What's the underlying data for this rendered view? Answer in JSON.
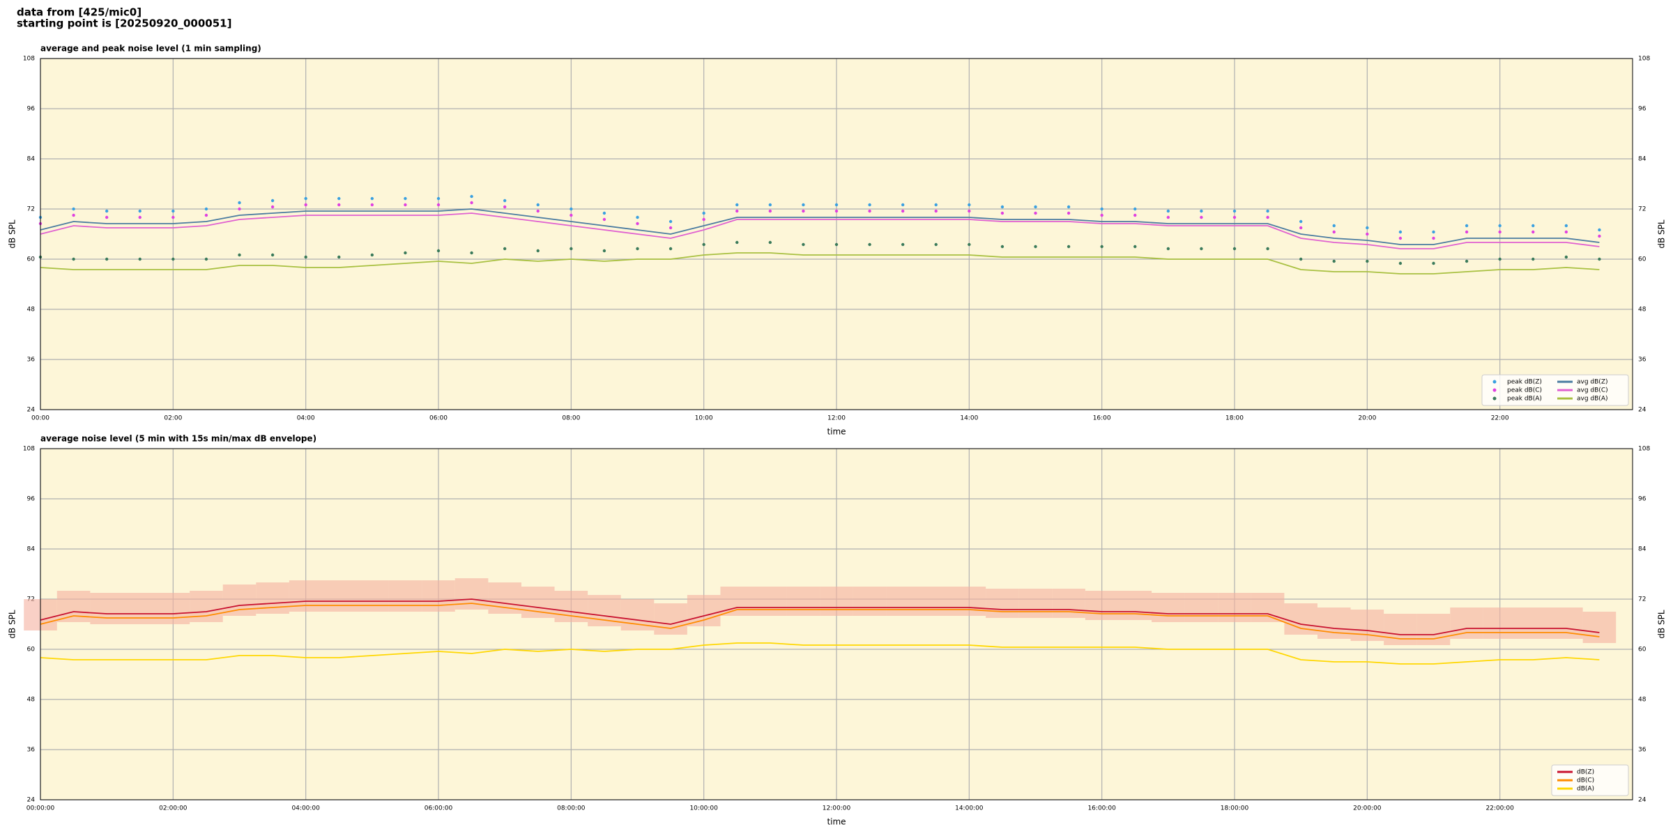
{
  "header_lines": [
    "data from [425/mic0]",
    "starting point is [20250920_000051]"
  ],
  "chart_data": [
    {
      "type": "line",
      "title": "average and peak noise level (1 min sampling)",
      "xlabel": "time",
      "ylabel": "dB SPL",
      "xlim": [
        0,
        24
      ],
      "ylim": [
        24,
        108
      ],
      "yticks": [
        24,
        36,
        48,
        60,
        72,
        84,
        96,
        108
      ],
      "xticks": [
        {
          "value": 0,
          "label": "00:00"
        },
        {
          "value": 2,
          "label": "02:00"
        },
        {
          "value": 4,
          "label": "04:00"
        },
        {
          "value": 6,
          "label": "06:00"
        },
        {
          "value": 8,
          "label": "08:00"
        },
        {
          "value": 10,
          "label": "10:00"
        },
        {
          "value": 12,
          "label": "12:00"
        },
        {
          "value": 14,
          "label": "14:00"
        },
        {
          "value": 16,
          "label": "16:00"
        },
        {
          "value": 18,
          "label": "18:00"
        },
        {
          "value": 20,
          "label": "20:00"
        },
        {
          "value": 22,
          "label": "22:00"
        }
      ],
      "grid": true,
      "legend": "lower right",
      "background": "#fdf6d8",
      "x": [
        0,
        0.5,
        1,
        1.5,
        2,
        2.5,
        3,
        3.5,
        4,
        4.5,
        5,
        5.5,
        6,
        6.5,
        7,
        7.5,
        8,
        8.5,
        9,
        9.5,
        10,
        10.5,
        11,
        11.5,
        12,
        12.5,
        13,
        13.5,
        14,
        14.5,
        15,
        15.5,
        16,
        16.5,
        17,
        17.5,
        18,
        18.5,
        19,
        19.5,
        20,
        20.5,
        21,
        21.5,
        22,
        22.5,
        23,
        23.5
      ],
      "series": [
        {
          "name": "peak dB(Z)",
          "color": "#3aa0e0",
          "marker": true,
          "values": [
            70,
            72,
            71.5,
            71.5,
            71.5,
            72,
            73.5,
            74,
            74.5,
            74.5,
            74.5,
            74.5,
            74.5,
            75,
            74,
            73,
            72,
            71,
            70,
            69,
            71,
            73,
            73,
            73,
            73,
            73,
            73,
            73,
            73,
            72.5,
            72.5,
            72.5,
            72,
            72,
            71.5,
            71.5,
            71.5,
            71.5,
            69,
            68,
            67.5,
            66.5,
            66.5,
            68,
            68,
            68,
            68,
            67
          ]
        },
        {
          "name": "peak dB(C)",
          "color": "#e040e0",
          "marker": true,
          "values": [
            68.5,
            70.5,
            70,
            70,
            70,
            70.5,
            72,
            72.5,
            73,
            73,
            73,
            73,
            73,
            73.5,
            72.5,
            71.5,
            70.5,
            69.5,
            68.5,
            67.5,
            69.5,
            71.5,
            71.5,
            71.5,
            71.5,
            71.5,
            71.5,
            71.5,
            71.5,
            71,
            71,
            71,
            70.5,
            70.5,
            70,
            70,
            70,
            70,
            67.5,
            66.5,
            66,
            65,
            65,
            66.5,
            66.5,
            66.5,
            66.5,
            65.5
          ]
        },
        {
          "name": "peak dB(A)",
          "color": "#3a7a5a",
          "marker": true,
          "values": [
            60.5,
            60,
            60,
            60,
            60,
            60,
            61,
            61,
            60.5,
            60.5,
            61,
            61.5,
            62,
            61.5,
            62.5,
            62,
            62.5,
            62,
            62.5,
            62.5,
            63.5,
            64,
            64,
            63.5,
            63.5,
            63.5,
            63.5,
            63.5,
            63.5,
            63,
            63,
            63,
            63,
            63,
            62.5,
            62.5,
            62.5,
            62.5,
            60,
            59.5,
            59.5,
            59,
            59,
            59.5,
            60,
            60,
            60.5,
            60
          ]
        },
        {
          "name": "avg dB(Z)",
          "color": "#4a7ba0",
          "marker": false,
          "values": [
            67,
            69,
            68.5,
            68.5,
            68.5,
            69,
            70.5,
            71,
            71.5,
            71.5,
            71.5,
            71.5,
            71.5,
            72,
            71,
            70,
            69,
            68,
            67,
            66,
            68,
            70,
            70,
            70,
            70,
            70,
            70,
            70,
            70,
            69.5,
            69.5,
            69.5,
            69,
            69,
            68.5,
            68.5,
            68.5,
            68.5,
            66,
            65,
            64.5,
            63.5,
            63.5,
            65,
            65,
            65,
            65,
            64
          ]
        },
        {
          "name": "avg dB(C)",
          "color": "#e060d0",
          "marker": false,
          "values": [
            66,
            68,
            67.5,
            67.5,
            67.5,
            68,
            69.5,
            70,
            70.5,
            70.5,
            70.5,
            70.5,
            70.5,
            71,
            70,
            69,
            68,
            67,
            66,
            65,
            67,
            69.5,
            69.5,
            69.5,
            69.5,
            69.5,
            69.5,
            69.5,
            69.5,
            69,
            69,
            69,
            68.5,
            68.5,
            68,
            68,
            68,
            68,
            65,
            64,
            63.5,
            62.5,
            62.5,
            64,
            64,
            64,
            64,
            63
          ]
        },
        {
          "name": "avg dB(A)",
          "color": "#a8c040",
          "marker": false,
          "values": [
            58,
            57.5,
            57.5,
            57.5,
            57.5,
            57.5,
            58.5,
            58.5,
            58,
            58,
            58.5,
            59,
            59.5,
            59,
            60,
            59.5,
            60,
            59.5,
            60,
            60,
            61,
            61.5,
            61.5,
            61,
            61,
            61,
            61,
            61,
            61,
            60.5,
            60.5,
            60.5,
            60.5,
            60.5,
            60,
            60,
            60,
            60,
            57.5,
            57,
            57,
            56.5,
            56.5,
            57,
            57.5,
            57.5,
            58,
            57.5
          ]
        }
      ]
    },
    {
      "type": "line",
      "title": "average noise level (5 min with 15s min/max dB envelope)",
      "xlabel": "time",
      "ylabel": "dB SPL",
      "xlim": [
        0,
        24
      ],
      "ylim": [
        24,
        108
      ],
      "yticks": [
        24,
        36,
        48,
        60,
        72,
        84,
        96,
        108
      ],
      "xticks": [
        {
          "value": 0,
          "label": "00:00:00"
        },
        {
          "value": 2,
          "label": "02:00:00"
        },
        {
          "value": 4,
          "label": "04:00:00"
        },
        {
          "value": 6,
          "label": "06:00:00"
        },
        {
          "value": 8,
          "label": "08:00:00"
        },
        {
          "value": 10,
          "label": "10:00:00"
        },
        {
          "value": 12,
          "label": "12:00:00"
        },
        {
          "value": 14,
          "label": "14:00:00"
        },
        {
          "value": 16,
          "label": "16:00:00"
        },
        {
          "value": 18,
          "label": "18:00:00"
        },
        {
          "value": 20,
          "label": "20:00:00"
        },
        {
          "value": 22,
          "label": "22:00:00"
        }
      ],
      "grid": true,
      "legend": "lower right",
      "background": "#fdf6d8",
      "x": [
        0,
        0.5,
        1,
        1.5,
        2,
        2.5,
        3,
        3.5,
        4,
        4.5,
        5,
        5.5,
        6,
        6.5,
        7,
        7.5,
        8,
        8.5,
        9,
        9.5,
        10,
        10.5,
        11,
        11.5,
        12,
        12.5,
        13,
        13.5,
        14,
        14.5,
        15,
        15.5,
        16,
        16.5,
        17,
        17.5,
        18,
        18.5,
        19,
        19.5,
        20,
        20.5,
        21,
        21.5,
        22,
        22.5,
        23,
        23.5
      ],
      "envelope": {
        "color": "#f5b0a0",
        "max": [
          72,
          74,
          73.5,
          73.5,
          73.5,
          74,
          75.5,
          76,
          76.5,
          76.5,
          76.5,
          76.5,
          76.5,
          77,
          76,
          75,
          74,
          73,
          72,
          71,
          73,
          75,
          75,
          75,
          75,
          75,
          75,
          75,
          75,
          74.5,
          74.5,
          74.5,
          74,
          74,
          73.5,
          73.5,
          73.5,
          73.5,
          71,
          70,
          69.5,
          68.5,
          68.5,
          70,
          70,
          70,
          70,
          69
        ],
        "min": [
          64.5,
          66.5,
          66,
          66,
          66,
          66.5,
          68,
          68.5,
          69,
          69,
          69,
          69,
          69,
          69.5,
          68.5,
          67.5,
          66.5,
          65.5,
          64.5,
          63.5,
          65.5,
          68,
          68,
          68,
          68,
          68,
          68,
          68,
          68,
          67.5,
          67.5,
          67.5,
          67,
          67,
          66.5,
          66.5,
          66.5,
          66.5,
          63.5,
          62.5,
          62,
          61,
          61,
          62.5,
          62.5,
          62.5,
          62.5,
          61.5
        ]
      },
      "series": [
        {
          "name": "dB(Z)",
          "color": "#c8102e",
          "marker": false,
          "values": [
            67,
            69,
            68.5,
            68.5,
            68.5,
            69,
            70.5,
            71,
            71.5,
            71.5,
            71.5,
            71.5,
            71.5,
            72,
            71,
            70,
            69,
            68,
            67,
            66,
            68,
            70,
            70,
            70,
            70,
            70,
            70,
            70,
            70,
            69.5,
            69.5,
            69.5,
            69,
            69,
            68.5,
            68.5,
            68.5,
            68.5,
            66,
            65,
            64.5,
            63.5,
            63.5,
            65,
            65,
            65,
            65,
            64
          ]
        },
        {
          "name": "dB(C)",
          "color": "#ff8c00",
          "marker": false,
          "values": [
            66,
            68,
            67.5,
            67.5,
            67.5,
            68,
            69.5,
            70,
            70.5,
            70.5,
            70.5,
            70.5,
            70.5,
            71,
            70,
            69,
            68,
            67,
            66,
            65,
            67,
            69.5,
            69.5,
            69.5,
            69.5,
            69.5,
            69.5,
            69.5,
            69.5,
            69,
            69,
            69,
            68.5,
            68.5,
            68,
            68,
            68,
            68,
            65,
            64,
            63.5,
            62.5,
            62.5,
            64,
            64,
            64,
            64,
            63
          ]
        },
        {
          "name": "dB(A)",
          "color": "#ffd700",
          "marker": false,
          "values": [
            58,
            57.5,
            57.5,
            57.5,
            57.5,
            57.5,
            58.5,
            58.5,
            58,
            58,
            58.5,
            59,
            59.5,
            59,
            60,
            59.5,
            60,
            59.5,
            60,
            60,
            61,
            61.5,
            61.5,
            61,
            61,
            61,
            61,
            61,
            61,
            60.5,
            60.5,
            60.5,
            60.5,
            60.5,
            60,
            60,
            60,
            60,
            57.5,
            57,
            57,
            56.5,
            56.5,
            57,
            57.5,
            57.5,
            58,
            57.5
          ]
        }
      ]
    }
  ]
}
